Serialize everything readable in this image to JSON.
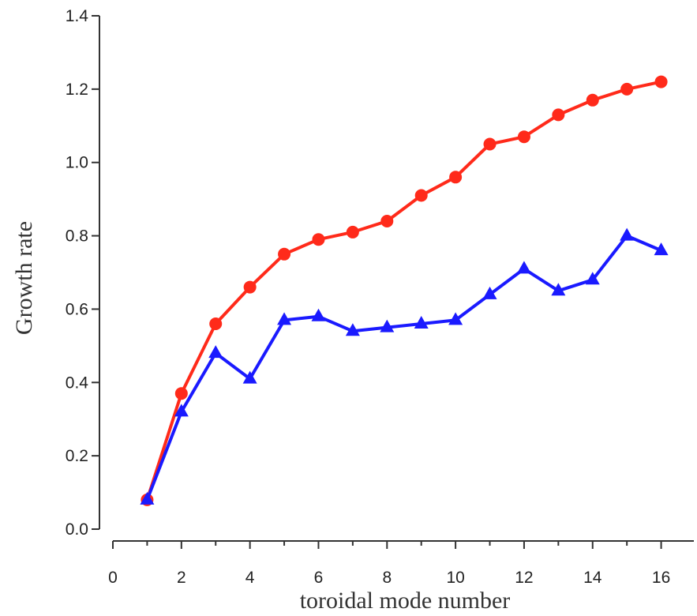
{
  "chart_data": {
    "type": "line",
    "title": "",
    "xlabel": "toroidal mode number",
    "ylabel": "Growth rate",
    "xlim": [
      0,
      17
    ],
    "ylim": [
      0,
      1.4
    ],
    "xticks": [
      0,
      2,
      4,
      6,
      8,
      10,
      12,
      14,
      16
    ],
    "xtick_labels": [
      "0",
      "2",
      "4",
      "6",
      "8",
      "10",
      "12",
      "14",
      "16"
    ],
    "yticks": [
      0.0,
      0.2,
      0.4,
      0.6,
      0.8,
      1.0,
      1.2,
      1.4
    ],
    "ytick_labels": [
      "0.0",
      "0.2",
      "0.4",
      "0.6",
      "0.8",
      "1.0",
      "1.2",
      "1.4"
    ],
    "grid": false,
    "legend": "none",
    "x": [
      1,
      2,
      3,
      4,
      5,
      6,
      7,
      8,
      9,
      10,
      11,
      12,
      13,
      14,
      15,
      16
    ],
    "series": [
      {
        "marker": "circle",
        "color": "#ff2a1a",
        "values": [
          0.08,
          0.37,
          0.56,
          0.66,
          0.75,
          0.79,
          0.81,
          0.84,
          0.91,
          0.96,
          1.05,
          1.07,
          1.13,
          1.17,
          1.2,
          1.22
        ]
      },
      {
        "marker": "triangle",
        "color": "#1a1aff",
        "values": [
          0.08,
          0.32,
          0.48,
          0.41,
          0.57,
          0.58,
          0.54,
          0.55,
          0.56,
          0.57,
          0.64,
          0.71,
          0.65,
          0.68,
          0.8,
          0.76
        ]
      }
    ]
  }
}
